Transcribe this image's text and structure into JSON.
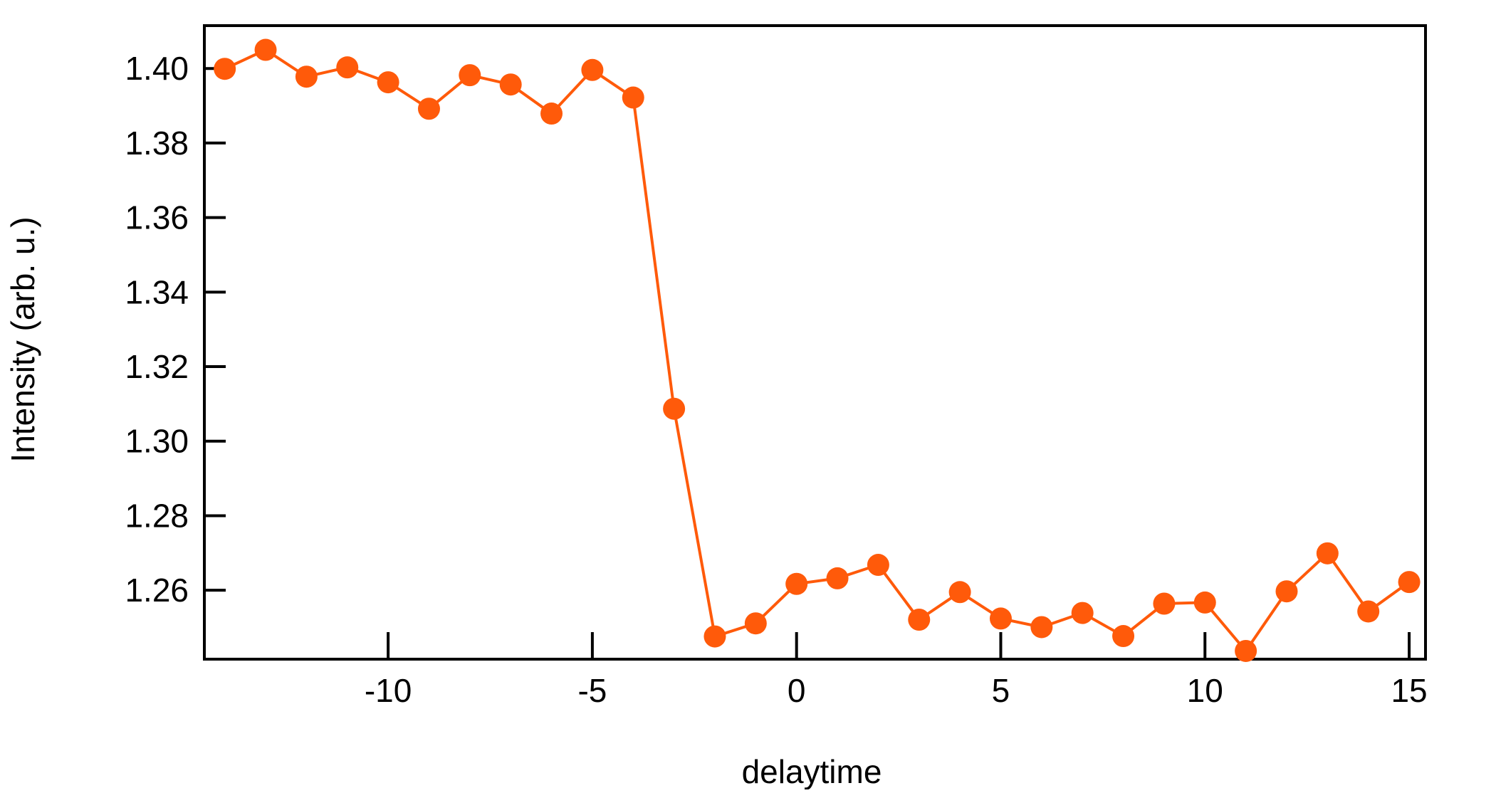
{
  "chart_data": {
    "type": "line",
    "title": "",
    "xlabel": "delaytime",
    "ylabel": "Intensity (arb. u.)",
    "xlim": [
      -14.5,
      15.4
    ],
    "ylim": [
      1.2415,
      1.4115
    ],
    "xticks": [
      -10,
      -5,
      0,
      5,
      10,
      15
    ],
    "xtick_labels": [
      "-10",
      "-5",
      "0",
      "5",
      "10",
      "15"
    ],
    "yticks": [
      1.26,
      1.28,
      1.3,
      1.32,
      1.34,
      1.36,
      1.38,
      1.4
    ],
    "ytick_labels": [
      "1.26",
      "1.28",
      "1.30",
      "1.32",
      "1.34",
      "1.36",
      "1.38",
      "1.40"
    ],
    "grid": false,
    "legend": "none",
    "series": [
      {
        "color": "#ff5a0a",
        "marker": "circle",
        "x": [
          -14,
          -13,
          -12,
          -11,
          -10,
          -9,
          -8,
          -7,
          -6,
          -5,
          -4,
          -3,
          -2,
          -1,
          0,
          1,
          2,
          3,
          4,
          5,
          6,
          7,
          8,
          9,
          10,
          11,
          12,
          13,
          14,
          15
        ],
        "y": [
          1.3999,
          1.405,
          1.3978,
          1.4003,
          1.3963,
          1.3892,
          1.3982,
          1.3957,
          1.3879,
          1.3996,
          1.3922,
          1.3087,
          1.2476,
          1.2511,
          1.2617,
          1.2632,
          1.2668,
          1.2521,
          1.2595,
          1.2524,
          1.2501,
          1.2539,
          1.2477,
          1.2564,
          1.2567,
          1.2437,
          1.2597,
          1.2699,
          1.2543,
          1.2622
        ]
      }
    ]
  }
}
